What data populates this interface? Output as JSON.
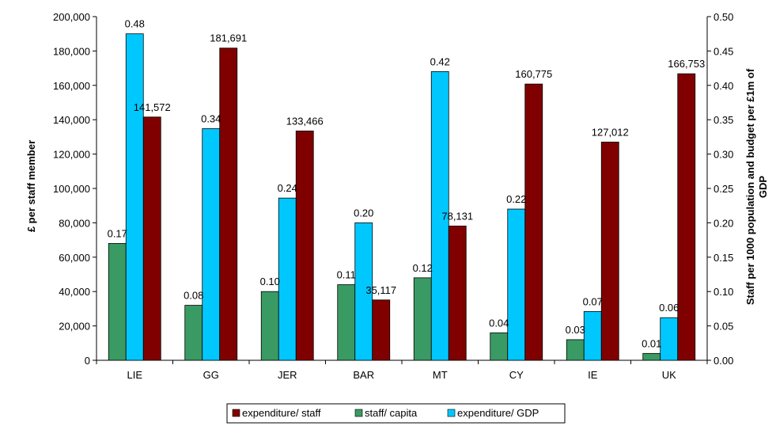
{
  "chart_data": {
    "type": "bar",
    "categories": [
      "LIE",
      "GG",
      "JER",
      "BAR",
      "MT",
      "CY",
      "IE",
      "UK"
    ],
    "series": [
      {
        "name": "staff/ capita",
        "axis": "right",
        "color": "#3a9a63",
        "values": [
          0.17,
          0.08,
          0.1,
          0.11,
          0.12,
          0.04,
          0.03,
          0.01
        ],
        "labels": [
          "0.17",
          "0.08",
          "0.10",
          "0.11",
          "0.12",
          "0.04",
          "0.03",
          "0.01"
        ]
      },
      {
        "name": "expenditure/ GDP",
        "axis": "right",
        "color": "#00c8ff",
        "values": [
          0.475,
          0.337,
          0.236,
          0.2,
          0.42,
          0.22,
          0.071,
          0.062
        ],
        "labels": [
          "0.48",
          "0.34",
          "0.24",
          "0.20",
          "0.42",
          "0.22",
          "0.07",
          "0.06"
        ]
      },
      {
        "name": "expenditure/ staff",
        "axis": "left",
        "color": "#800000",
        "values": [
          141572,
          181691,
          133466,
          35117,
          78131,
          160775,
          127012,
          166753
        ],
        "labels": [
          "141,572",
          "181,691",
          "133,466",
          "35,117",
          "78,131",
          "160,775",
          "127,012",
          "166,753"
        ]
      }
    ],
    "ylabel": "£ per staff member",
    "y2label_line1": "Staff per 1000 population and budget per £1m of",
    "y2label_line2": "GDP",
    "ylim": [
      0,
      200000
    ],
    "y2lim": [
      0,
      0.5
    ],
    "yticks": [
      "0",
      "20,000",
      "40,000",
      "60,000",
      "80,000",
      "100,000",
      "120,000",
      "140,000",
      "160,000",
      "180,000",
      "200,000"
    ],
    "y2ticks": [
      "0.00",
      "0.05",
      "0.10",
      "0.15",
      "0.20",
      "0.25",
      "0.30",
      "0.35",
      "0.40",
      "0.45",
      "0.50"
    ],
    "grid": false,
    "legend": {
      "position": "bottom",
      "order": [
        "expenditure/ staff",
        "staff/ capita",
        "expenditure/ GDP"
      ]
    }
  }
}
